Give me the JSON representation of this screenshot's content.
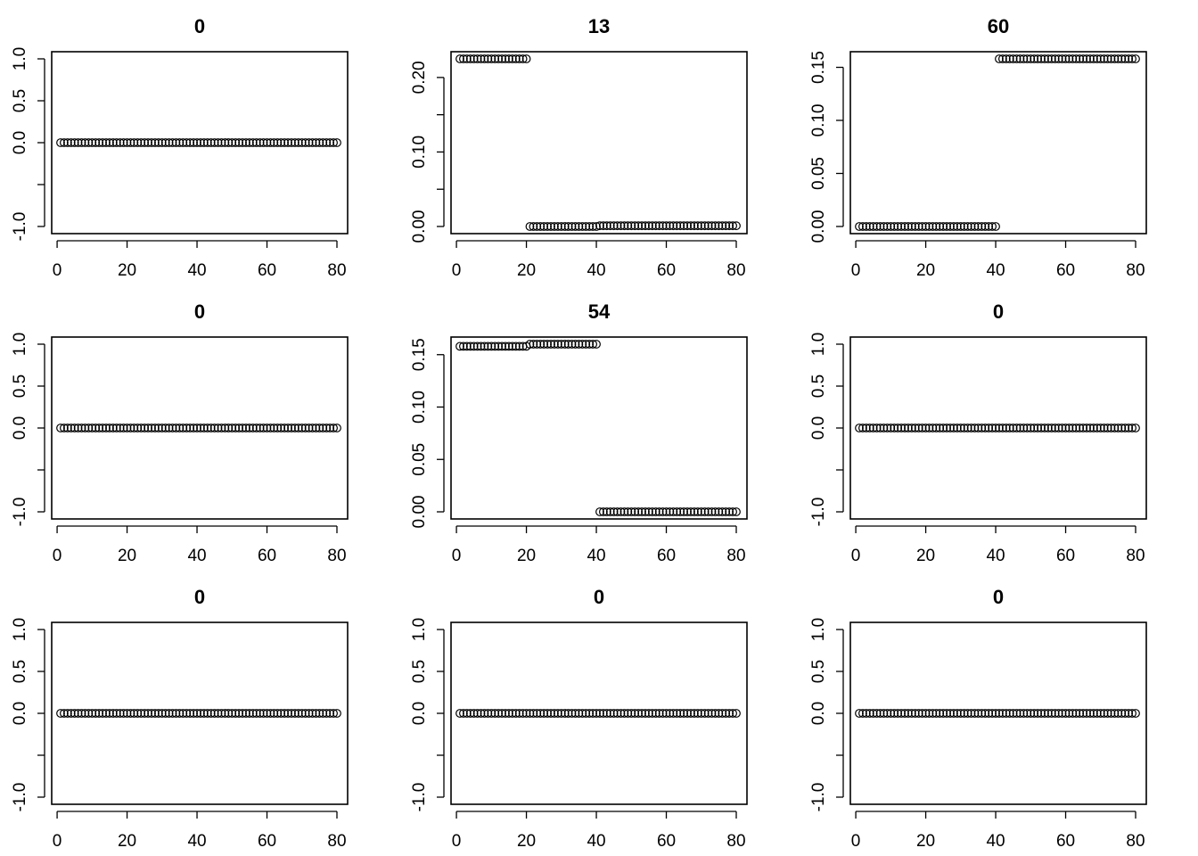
{
  "chart_data": [
    {
      "type": "scatter",
      "title": "0",
      "xlim": [
        1,
        80
      ],
      "ylim": [
        -1,
        1
      ],
      "x_ticks": [
        "0",
        "20",
        "40",
        "60",
        "80"
      ],
      "y_ticks": [
        "-1.0",
        "",
        "0.0",
        "0.5",
        "1.0"
      ],
      "y_tick_values": [
        -1,
        -0.5,
        0,
        0.5,
        1
      ],
      "segments": [
        {
          "from": 1,
          "to": 80,
          "y": 0
        }
      ]
    },
    {
      "type": "scatter",
      "title": "13",
      "xlim": [
        1,
        80
      ],
      "ylim": [
        0,
        0.225
      ],
      "x_ticks": [
        "0",
        "20",
        "40",
        "60",
        "80"
      ],
      "y_ticks": [
        "0.00",
        "",
        "0.10",
        "",
        "0.20"
      ],
      "y_tick_values": [
        0,
        0.05,
        0.1,
        0.15,
        0.2
      ],
      "segments": [
        {
          "from": 1,
          "to": 20,
          "y": 0.225
        },
        {
          "from": 21,
          "to": 40,
          "y": 0
        },
        {
          "from": 41,
          "to": 80,
          "y": 0.001
        }
      ]
    },
    {
      "type": "scatter",
      "title": "60",
      "xlim": [
        1,
        80
      ],
      "ylim": [
        0,
        0.158
      ],
      "x_ticks": [
        "0",
        "20",
        "40",
        "60",
        "80"
      ],
      "y_ticks": [
        "0.00",
        "0.05",
        "0.10",
        "0.15"
      ],
      "y_tick_values": [
        0,
        0.05,
        0.1,
        0.15
      ],
      "segments": [
        {
          "from": 1,
          "to": 40,
          "y": 0
        },
        {
          "from": 41,
          "to": 80,
          "y": 0.158
        }
      ]
    },
    {
      "type": "scatter",
      "title": "0",
      "xlim": [
        1,
        80
      ],
      "ylim": [
        -1,
        1
      ],
      "x_ticks": [
        "0",
        "20",
        "40",
        "60",
        "80"
      ],
      "y_ticks": [
        "-1.0",
        "",
        "0.0",
        "0.5",
        "1.0"
      ],
      "y_tick_values": [
        -1,
        -0.5,
        0,
        0.5,
        1
      ],
      "segments": [
        {
          "from": 1,
          "to": 80,
          "y": 0
        }
      ]
    },
    {
      "type": "scatter",
      "title": "54",
      "xlim": [
        1,
        80
      ],
      "ylim": [
        0,
        0.16
      ],
      "x_ticks": [
        "0",
        "20",
        "40",
        "60",
        "80"
      ],
      "y_ticks": [
        "0.00",
        "0.05",
        "0.10",
        "0.15"
      ],
      "y_tick_values": [
        0,
        0.05,
        0.1,
        0.15
      ],
      "segments": [
        {
          "from": 1,
          "to": 20,
          "y": 0.158
        },
        {
          "from": 21,
          "to": 40,
          "y": 0.16
        },
        {
          "from": 41,
          "to": 80,
          "y": 0
        }
      ]
    },
    {
      "type": "scatter",
      "title": "0",
      "xlim": [
        1,
        80
      ],
      "ylim": [
        -1,
        1
      ],
      "x_ticks": [
        "0",
        "20",
        "40",
        "60",
        "80"
      ],
      "y_ticks": [
        "-1.0",
        "",
        "0.0",
        "0.5",
        "1.0"
      ],
      "y_tick_values": [
        -1,
        -0.5,
        0,
        0.5,
        1
      ],
      "segments": [
        {
          "from": 1,
          "to": 80,
          "y": 0
        }
      ]
    },
    {
      "type": "scatter",
      "title": "0",
      "xlim": [
        1,
        80
      ],
      "ylim": [
        -1,
        1
      ],
      "x_ticks": [
        "0",
        "20",
        "40",
        "60",
        "80"
      ],
      "y_ticks": [
        "-1.0",
        "",
        "0.0",
        "0.5",
        "1.0"
      ],
      "y_tick_values": [
        -1,
        -0.5,
        0,
        0.5,
        1
      ],
      "segments": [
        {
          "from": 1,
          "to": 80,
          "y": 0
        }
      ]
    },
    {
      "type": "scatter",
      "title": "0",
      "xlim": [
        1,
        80
      ],
      "ylim": [
        -1,
        1
      ],
      "x_ticks": [
        "0",
        "20",
        "40",
        "60",
        "80"
      ],
      "y_ticks": [
        "-1.0",
        "",
        "0.0",
        "0.5",
        "1.0"
      ],
      "y_tick_values": [
        -1,
        -0.5,
        0,
        0.5,
        1
      ],
      "segments": [
        {
          "from": 1,
          "to": 80,
          "y": 0
        }
      ]
    },
    {
      "type": "scatter",
      "title": "0",
      "xlim": [
        1,
        80
      ],
      "ylim": [
        -1,
        1
      ],
      "x_ticks": [
        "0",
        "20",
        "40",
        "60",
        "80"
      ],
      "y_ticks": [
        "-1.0",
        "",
        "0.0",
        "0.5",
        "1.0"
      ],
      "y_tick_values": [
        -1,
        -0.5,
        0,
        0.5,
        1
      ],
      "segments": [
        {
          "from": 1,
          "to": 80,
          "y": 0
        }
      ]
    }
  ]
}
